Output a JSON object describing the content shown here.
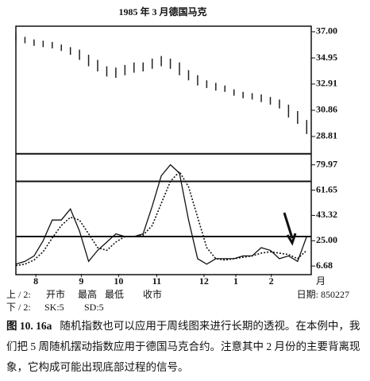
{
  "chart_data": [
    {
      "type": "range_bar",
      "title": "1985 年 3 月德国马克",
      "color": "#222",
      "x": [
        0,
        1,
        2,
        3,
        4,
        5,
        6,
        7,
        8,
        9,
        10,
        11,
        12,
        13,
        14,
        15,
        16,
        17,
        18,
        19,
        20,
        21,
        22,
        23,
        24,
        25,
        26,
        27,
        28,
        29,
        30,
        31,
        32
      ],
      "high": [
        36.9,
        36.6,
        36.4,
        36.3,
        36.2,
        36.0,
        35.8,
        35.6,
        35.2,
        34.8,
        34.3,
        34.2,
        34.4,
        34.6,
        34.6,
        34.9,
        35.1,
        34.9,
        34.6,
        34.0,
        33.6,
        33.2,
        33.0,
        32.8,
        32.5,
        32.3,
        32.2,
        32.1,
        31.9,
        31.7,
        31.3,
        30.8,
        30.1
      ],
      "low": [
        36.3,
        36.1,
        35.9,
        35.8,
        35.7,
        35.5,
        35.2,
        34.8,
        34.3,
        33.9,
        33.5,
        33.4,
        33.6,
        33.8,
        33.9,
        34.1,
        34.3,
        34.1,
        33.6,
        33.2,
        32.8,
        32.6,
        32.4,
        32.3,
        32.0,
        31.8,
        31.7,
        31.5,
        31.3,
        31.0,
        30.3,
        29.8,
        29.0
      ],
      "xlim": [
        0,
        32.5
      ],
      "ylim": [
        28.0,
        37.31
      ],
      "yticks": [
        {
          "value": 37,
          "label": "37.00"
        },
        34.95,
        32.91,
        30.86,
        28.81
      ]
    },
    {
      "type": "line",
      "x": [
        0,
        1,
        2,
        3,
        4,
        5,
        6,
        7,
        8,
        9,
        10,
        11,
        12,
        13,
        14,
        15,
        16,
        17,
        18,
        19,
        20,
        21,
        22,
        23,
        24,
        25,
        26,
        27,
        28,
        29,
        30,
        31,
        32
      ],
      "series": [
        {
          "name": "SK:5",
          "color": "#111",
          "dash": false,
          "values": [
            8,
            10,
            14,
            25,
            40,
            40,
            48,
            32,
            10,
            18,
            24,
            30,
            28,
            28,
            30,
            50,
            72,
            80,
            74,
            40,
            12,
            8,
            12,
            12,
            12,
            14,
            14,
            20,
            18,
            12,
            14,
            10,
            28
          ]
        },
        {
          "name": "SD:5",
          "color": "#111",
          "dash": true,
          "values": [
            7,
            8,
            11,
            17,
            27,
            36,
            42,
            40,
            30,
            20,
            18,
            24,
            28,
            28,
            29,
            36,
            52,
            68,
            75,
            64,
            42,
            20,
            12,
            11,
            12,
            13,
            14,
            16,
            17,
            16,
            15,
            12,
            18
          ]
        }
      ],
      "reference_lines": [
        88,
        68,
        28
      ],
      "xlim": [
        0,
        32.5
      ],
      "ylim": [
        1,
        93
      ],
      "yticks": [
        79.97,
        61.65,
        43.32,
        {
          "value": 25,
          "label": "25.00"
        },
        6.68
      ],
      "xticks": [
        {
          "value": 2.2,
          "label": "8"
        },
        {
          "value": 7.2,
          "label": "9"
        },
        {
          "value": 11.3,
          "label": "10"
        },
        {
          "value": 15.5,
          "label": "11"
        },
        {
          "value": 20.7,
          "label": "12"
        },
        {
          "value": 24.2,
          "label": "1"
        },
        {
          "value": 28.1,
          "label": "2"
        }
      ],
      "x_unit": "月"
    }
  ],
  "footer": {
    "upper_label": "上 / 2:",
    "upper_items": [
      "开市",
      "最高",
      "最低",
      "收市"
    ],
    "lower_label": "下 / 2:",
    "date": "日期: 850227"
  },
  "caption": {
    "figure": "图 10. 16a",
    "text": "随机指数也可以应用于周线图来进行长期的透视。在本例中，我们把 5 周随机摆动指数应用于德国马克合约。注意其中 2 月份的主要背离现象，它构成可能出现底部过程的信号。"
  }
}
